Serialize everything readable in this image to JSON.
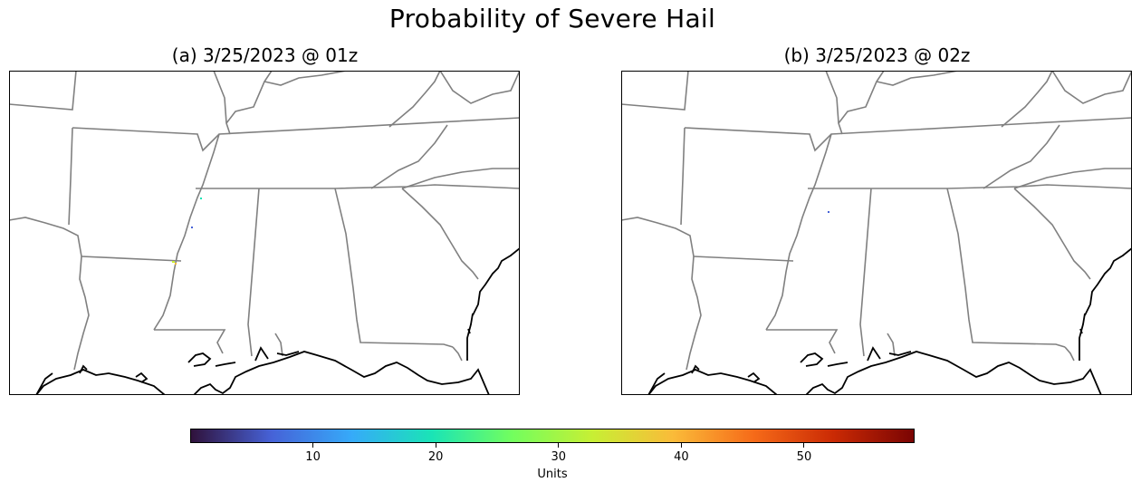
{
  "suptitle": "Probability of Severe Hail",
  "panels": [
    {
      "title": "(a) 3/25/2023 @ 01z"
    },
    {
      "title": "(b) 3/25/2023 @ 02z"
    }
  ],
  "colorbar": {
    "label": "Units",
    "ticks": [
      "10",
      "20",
      "30",
      "40",
      "50"
    ],
    "tick_values": [
      10,
      20,
      30,
      40,
      50
    ],
    "range": [
      0,
      59
    ],
    "colormap": "turbo",
    "colors": [
      "#30123b",
      "#4662d7",
      "#36aaf9",
      "#1ae4b6",
      "#72fe5e",
      "#c7ef34",
      "#fabb39",
      "#f66b19",
      "#ca2a04",
      "#7a0403"
    ]
  },
  "map_style": {
    "state_border_color": "#808080",
    "coastline_color": "#000000"
  }
}
